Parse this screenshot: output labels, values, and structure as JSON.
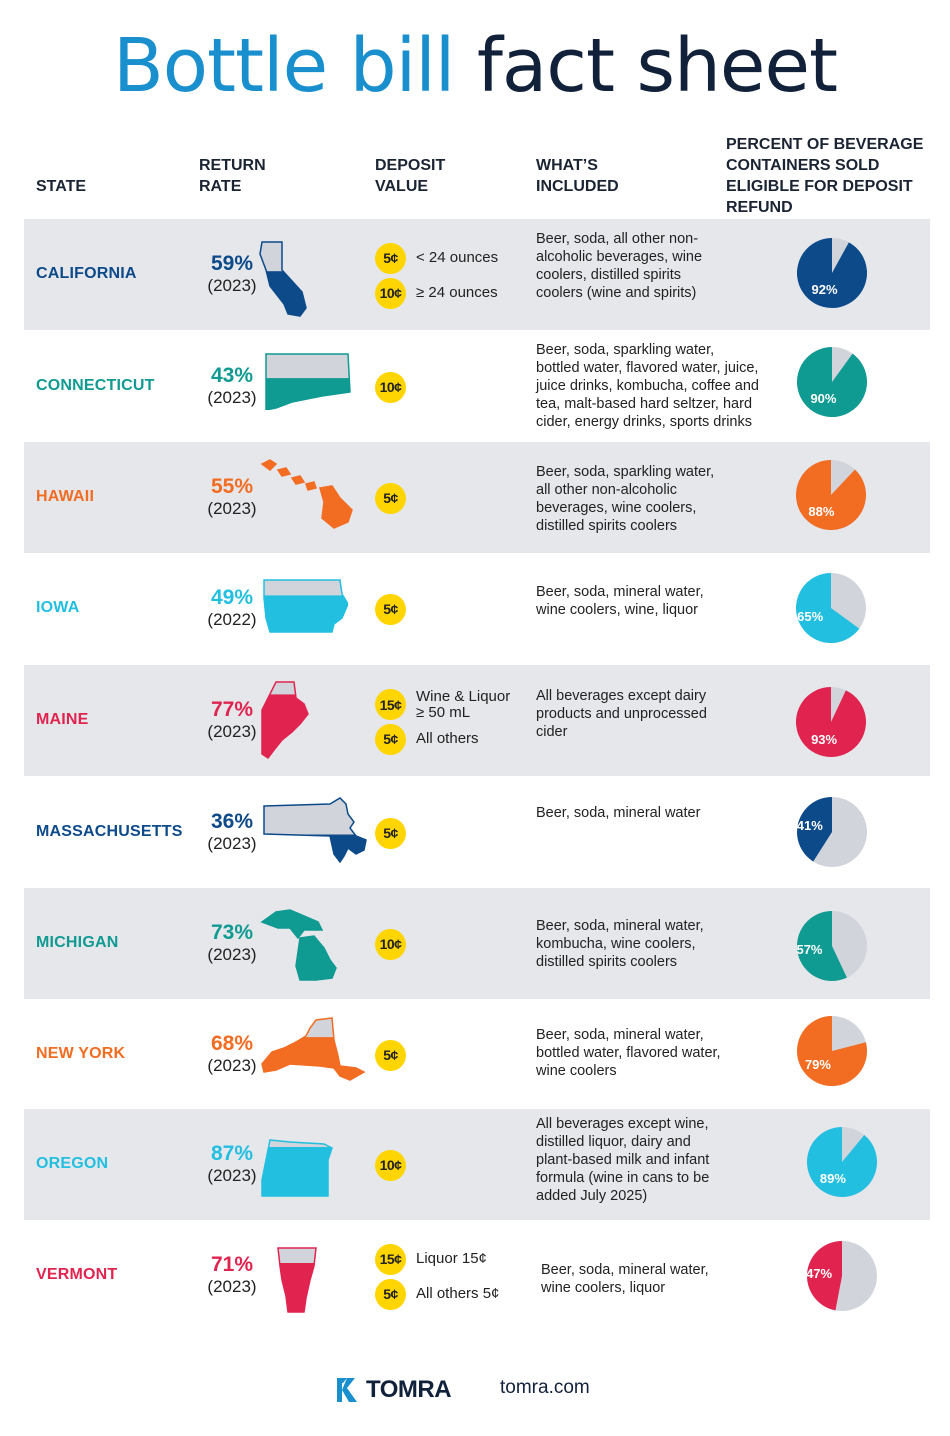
{
  "title": {
    "part1": "Bottle bill",
    "part2": "fact sheet"
  },
  "headers": {
    "state": "STATE",
    "return_rate_1": "RETURN",
    "return_rate_2": "RATE",
    "deposit_1": "DEPOSIT",
    "deposit_2": "VALUE",
    "included_1": "WHAT’S",
    "included_2": "INCLUDED",
    "percent_1": "PERCENT OF BEVERAGE",
    "percent_2": "CONTAINERS SOLD",
    "percent_3": "ELIGIBLE FOR DEPOSIT",
    "percent_4": "REFUND"
  },
  "colors": {
    "navy": "#0d4a8a",
    "teal": "#0f9a92",
    "orange": "#f26c22",
    "sky": "#22bfe0",
    "crimson": "#e0244f",
    "coin": "#ffd500",
    "pie_rest": "#d1d5db",
    "band": "#e5e7eb"
  },
  "states": [
    {
      "name": "CALIFORNIA",
      "rate": "59%",
      "year": "(2023)",
      "deposits": [
        {
          "coin": "5¢",
          "label": "< 24 ounces"
        },
        {
          "coin": "10¢",
          "label": "≥ 24 ounces"
        }
      ],
      "included": [
        "Beer, soda, all other non-",
        "alcoholic beverages, wine",
        "coolers, distilled spirits",
        "coolers (wine and spirits)"
      ],
      "percent": 92,
      "percent_label": "92%",
      "color": "#0d4a8a",
      "map_icon": "california-map-icon"
    },
    {
      "name": "CONNECTICUT",
      "rate": "43%",
      "year": "(2023)",
      "deposits": [
        {
          "coin": "10¢",
          "label": ""
        }
      ],
      "included": [
        "Beer, soda, sparkling water,",
        "bottled water, flavored water, juice,",
        "juice drinks, kombucha, coffee and",
        "tea, malt-based hard seltzer, hard",
        "cider, energy drinks, sports drinks"
      ],
      "percent": 90,
      "percent_label": "90%",
      "color": "#0f9a92",
      "map_icon": "connecticut-map-icon"
    },
    {
      "name": "HAWAII",
      "rate": "55%",
      "year": "(2023)",
      "deposits": [
        {
          "coin": "5¢",
          "label": ""
        }
      ],
      "included": [
        "Beer, soda, sparkling water,",
        "all other non-alcoholic",
        "beverages, wine coolers,",
        "distilled spirits coolers"
      ],
      "percent": 88,
      "percent_label": "88%",
      "color": "#f26c22",
      "map_icon": "hawaii-map-icon"
    },
    {
      "name": "IOWA",
      "rate": "49%",
      "year": "(2022)",
      "deposits": [
        {
          "coin": "5¢",
          "label": ""
        }
      ],
      "included": [
        "Beer, soda, mineral water,",
        "wine coolers, wine, liquor"
      ],
      "percent": 65,
      "percent_label": "65%",
      "color": "#22bfe0",
      "map_icon": "iowa-map-icon"
    },
    {
      "name": "MAINE",
      "rate": "77%",
      "year": "(2023)",
      "deposits": [
        {
          "coin": "15¢",
          "label": "Wine & Liquor\n≥ 50 mL"
        },
        {
          "coin": "5¢",
          "label": "All others"
        }
      ],
      "included": [
        "All beverages except dairy",
        "products and unprocessed",
        "cider"
      ],
      "percent": 93,
      "percent_label": "93%",
      "color": "#e0244f",
      "map_icon": "maine-map-icon"
    },
    {
      "name": "MASSACHUSETTS",
      "rate": "36%",
      "year": "(2023)",
      "deposits": [
        {
          "coin": "5¢",
          "label": ""
        }
      ],
      "included": [
        "Beer, soda, mineral water"
      ],
      "percent": 41,
      "percent_label": "41%",
      "color": "#0d4a8a",
      "map_icon": "massachusetts-map-icon"
    },
    {
      "name": "MICHIGAN",
      "rate": "73%",
      "year": "(2023)",
      "deposits": [
        {
          "coin": "10¢",
          "label": ""
        }
      ],
      "included": [
        "Beer, soda, mineral water,",
        "kombucha, wine coolers,",
        "distilled spirits coolers"
      ],
      "percent": 57,
      "percent_label": "57%",
      "color": "#0f9a92",
      "map_icon": "michigan-map-icon"
    },
    {
      "name": "NEW YORK",
      "rate": "68%",
      "year": "(2023)",
      "deposits": [
        {
          "coin": "5¢",
          "label": ""
        }
      ],
      "included": [
        "Beer, soda, mineral water,",
        "bottled water, flavored water,",
        "wine coolers"
      ],
      "percent": 79,
      "percent_label": "79%",
      "color": "#f26c22",
      "map_icon": "new-york-map-icon"
    },
    {
      "name": "OREGON",
      "rate": "87%",
      "year": "(2023)",
      "deposits": [
        {
          "coin": "10¢",
          "label": ""
        }
      ],
      "included": [
        "All beverages except wine,",
        "distilled liquor, dairy and",
        "plant-based milk and infant",
        "formula (wine in cans to be",
        "added July 2025)"
      ],
      "percent": 89,
      "percent_label": "89%",
      "color": "#22bfe0",
      "map_icon": "oregon-map-icon"
    },
    {
      "name": "VERMONT",
      "rate": "71%",
      "year": "(2023)",
      "deposits": [
        {
          "coin": "15¢",
          "label": "Liquor 15¢"
        },
        {
          "coin": "5¢",
          "label": "All others 5¢"
        }
      ],
      "included": [
        "Beer, soda, mineral water,",
        "wine coolers, liquor"
      ],
      "percent": 47,
      "percent_label": "47%",
      "color": "#e0244f",
      "map_icon": "vermont-map-icon"
    }
  ],
  "footer": {
    "brand": "TOMRA",
    "website": "tomra.com"
  }
}
